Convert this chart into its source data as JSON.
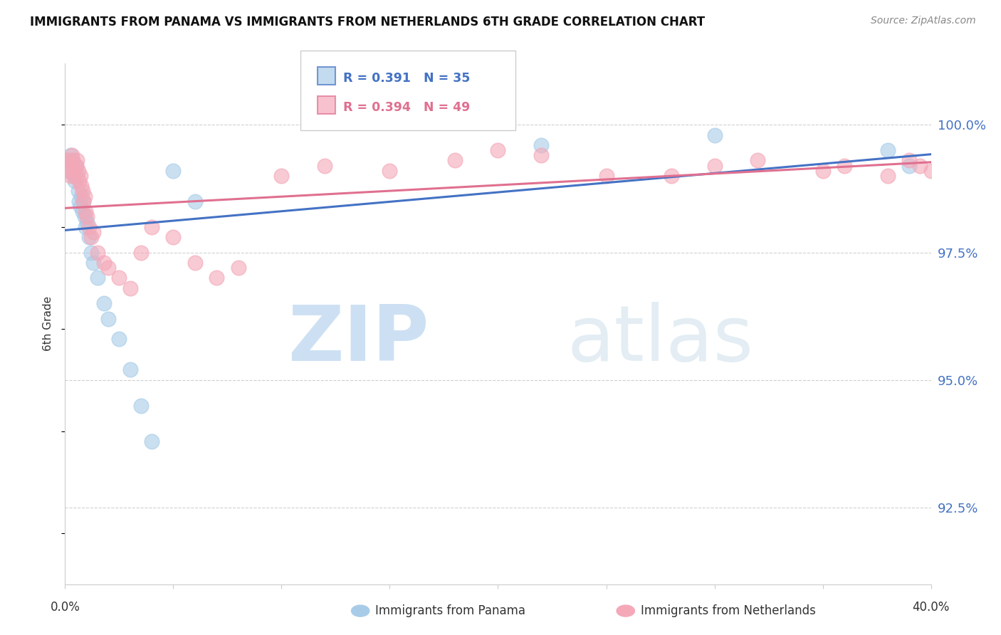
{
  "title": "IMMIGRANTS FROM PANAMA VS IMMIGRANTS FROM NETHERLANDS 6TH GRADE CORRELATION CHART",
  "source": "Source: ZipAtlas.com",
  "ylabel": "6th Grade",
  "xlim": [
    0.0,
    40.0
  ],
  "ylim": [
    91.0,
    101.2
  ],
  "yticks": [
    92.5,
    95.0,
    97.5,
    100.0
  ],
  "ytick_labels": [
    "92.5%",
    "95.0%",
    "97.5%",
    "100.0%"
  ],
  "blue_color": "#a8cce8",
  "pink_color": "#f4a8b8",
  "blue_line_color": "#4472c4",
  "pink_line_color": "#e07090",
  "blue_x": [
    0.1,
    0.15,
    0.2,
    0.25,
    0.3,
    0.35,
    0.4,
    0.45,
    0.5,
    0.55,
    0.6,
    0.65,
    0.7,
    0.75,
    0.8,
    0.85,
    0.9,
    0.95,
    1.0,
    1.1,
    1.2,
    1.3,
    1.5,
    1.8,
    2.0,
    2.5,
    3.0,
    3.5,
    4.0,
    5.0,
    6.0,
    22.0,
    30.0,
    38.0,
    39.0
  ],
  "blue_y": [
    99.1,
    99.3,
    99.2,
    99.4,
    99.3,
    99.1,
    99.0,
    98.9,
    99.2,
    99.0,
    98.7,
    98.5,
    98.4,
    98.6,
    98.3,
    98.5,
    98.2,
    98.0,
    98.1,
    97.8,
    97.5,
    97.3,
    97.0,
    96.5,
    96.2,
    95.8,
    95.2,
    94.5,
    93.8,
    99.1,
    98.5,
    99.6,
    99.8,
    99.5,
    99.2
  ],
  "pink_x": [
    0.1,
    0.15,
    0.2,
    0.25,
    0.3,
    0.35,
    0.4,
    0.45,
    0.5,
    0.55,
    0.6,
    0.65,
    0.7,
    0.75,
    0.8,
    0.85,
    0.9,
    0.95,
    1.0,
    1.1,
    1.2,
    1.3,
    1.5,
    1.8,
    2.0,
    2.5,
    3.0,
    3.5,
    4.0,
    5.0,
    6.0,
    7.0,
    8.0,
    10.0,
    12.0,
    15.0,
    18.0,
    20.0,
    25.0,
    30.0,
    35.0,
    38.0,
    39.0,
    39.5,
    40.0,
    22.0,
    28.0,
    32.0,
    36.0
  ],
  "pink_y": [
    99.3,
    99.1,
    99.2,
    99.0,
    99.4,
    99.3,
    99.1,
    99.0,
    99.2,
    99.3,
    99.1,
    98.9,
    99.0,
    98.8,
    98.7,
    98.5,
    98.6,
    98.3,
    98.2,
    98.0,
    97.8,
    97.9,
    97.5,
    97.3,
    97.2,
    97.0,
    96.8,
    97.5,
    98.0,
    97.8,
    97.3,
    97.0,
    97.2,
    99.0,
    99.2,
    99.1,
    99.3,
    99.5,
    99.0,
    99.2,
    99.1,
    99.0,
    99.3,
    99.2,
    99.1,
    99.4,
    99.0,
    99.3,
    99.2
  ],
  "watermark_zip": "ZIP",
  "watermark_atlas": "atlas",
  "background_color": "#ffffff",
  "grid_color": "#d0d0d0"
}
